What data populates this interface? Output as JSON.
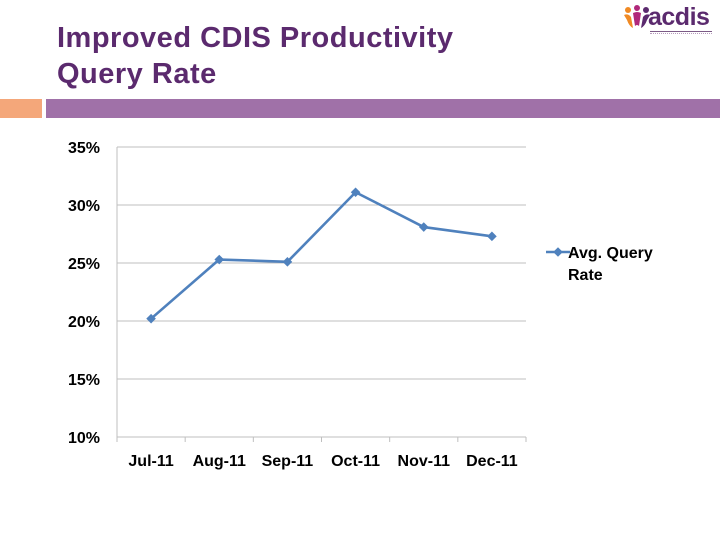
{
  "slide": {
    "title_lines": [
      "Improved CDIS Productivity",
      "Query Rate"
    ]
  },
  "logo": {
    "text": "acdis",
    "icon": "people-figures-icon",
    "colors": {
      "orange": "#f08a24",
      "purple": "#5b2a6e",
      "magenta": "#b0287a"
    }
  },
  "colors": {
    "title": "#5b2a6e",
    "band_orange": "#f4a77a",
    "band_purple": "#a071a8",
    "series": "#4f81bd",
    "grid": "#bfbfbf"
  },
  "chart_data": {
    "type": "line",
    "categories": [
      "Jul-11",
      "Aug-11",
      "Sep-11",
      "Oct-11",
      "Nov-11",
      "Dec-11"
    ],
    "series": [
      {
        "name": "Avg. Query Rate",
        "values": [
          0.202,
          0.253,
          0.251,
          0.311,
          0.281,
          0.273
        ]
      }
    ],
    "ylim": [
      0.1,
      0.35
    ],
    "yticks": [
      "35%",
      "30%",
      "25%",
      "20%",
      "15%",
      "10%"
    ],
    "grid": true,
    "legend": "right",
    "legend_lines": [
      "Avg. Query",
      "Rate"
    ],
    "marker": "diamond"
  }
}
